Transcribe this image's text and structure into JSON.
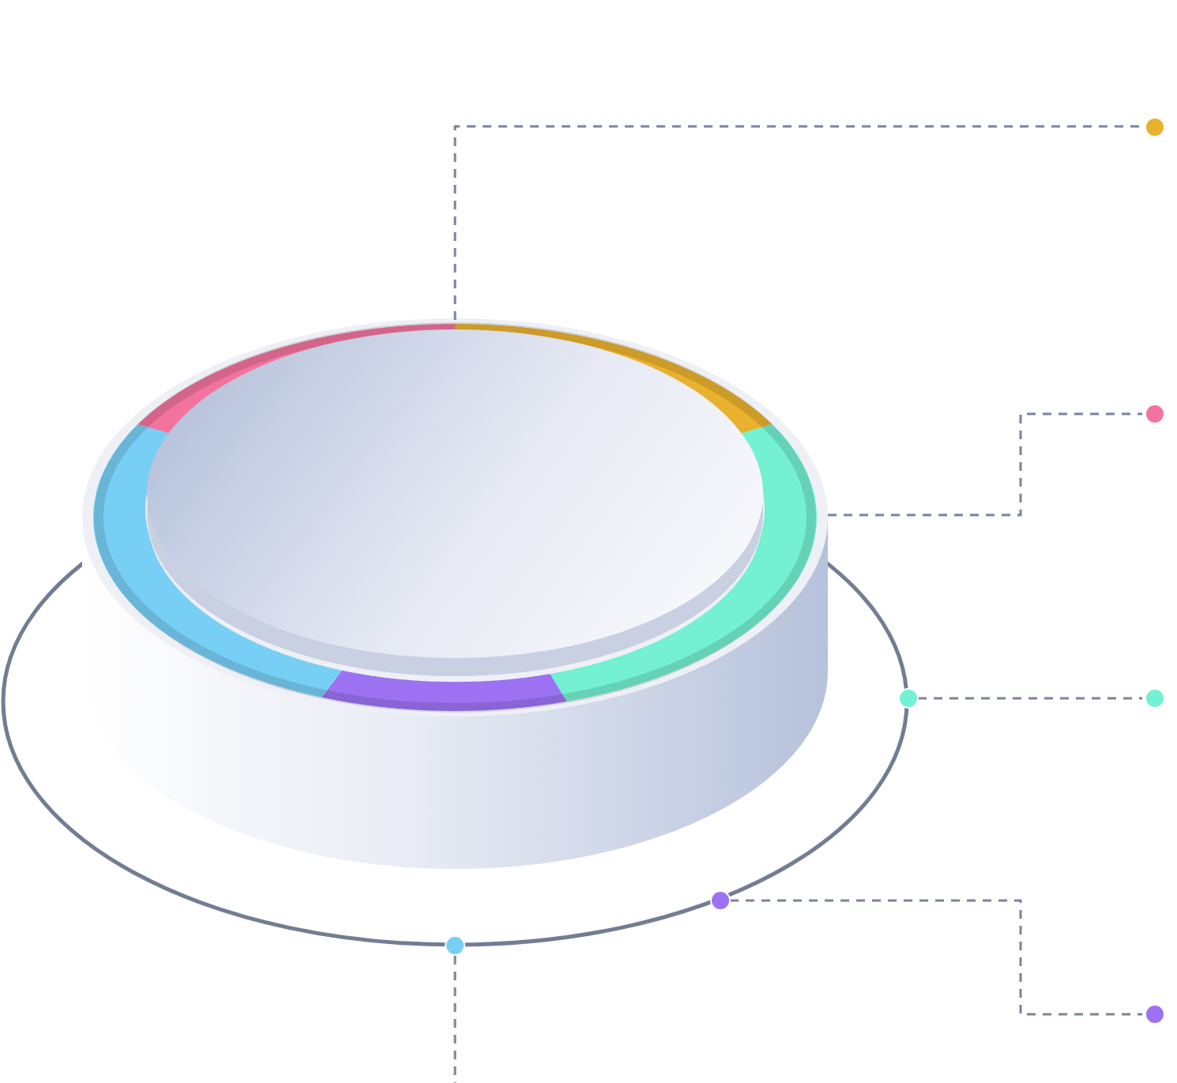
{
  "chart_data": {
    "type": "doughnut",
    "categories": [
      null,
      null,
      null,
      null,
      null
    ],
    "values": [
      17,
      28,
      11,
      27,
      17
    ],
    "colors": [
      "#E9B12E",
      "#74F0D2",
      "#9C72F2",
      "#78CFF5",
      "#F2749E"
    ],
    "legend": false,
    "data_labels": false
  }
}
